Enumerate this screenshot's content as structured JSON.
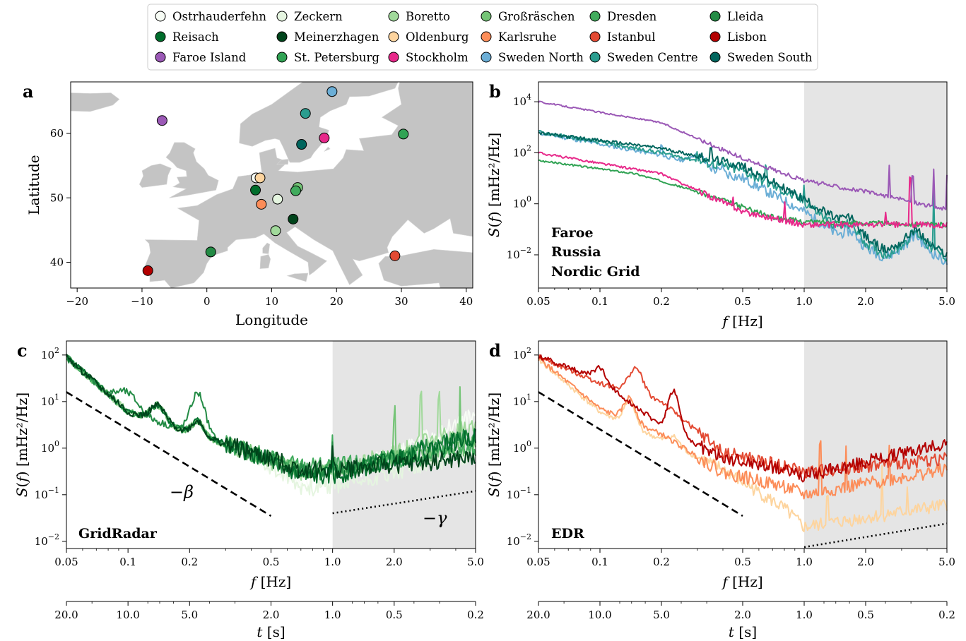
{
  "legend": [
    {
      "name": "Ostrhauderfehn",
      "color": "#f7fcf5"
    },
    {
      "name": "Zeckern",
      "color": "#e5f5e0"
    },
    {
      "name": "Boretto",
      "color": "#a1d99b"
    },
    {
      "name": "Großräschen",
      "color": "#74c476"
    },
    {
      "name": "Dresden",
      "color": "#41ab5d"
    },
    {
      "name": "Lleida",
      "color": "#238b45"
    },
    {
      "name": "Reisach",
      "color": "#006d2c"
    },
    {
      "name": "Meinerzhagen",
      "color": "#00441b"
    },
    {
      "name": "Oldenburg",
      "color": "#fdd49e"
    },
    {
      "name": "Karlsruhe",
      "color": "#fc8d59"
    },
    {
      "name": "Istanbul",
      "color": "#e34a33"
    },
    {
      "name": "Lisbon",
      "color": "#b30000"
    },
    {
      "name": "Faroe Island",
      "color": "#9b59b6"
    },
    {
      "name": "St. Petersburg",
      "color": "#31a354"
    },
    {
      "name": "Stockholm",
      "color": "#e7298a"
    },
    {
      "name": "Sweden North",
      "color": "#6baed6"
    },
    {
      "name": "Sweden Centre",
      "color": "#2a9d8f"
    },
    {
      "name": "Sweden South",
      "color": "#01665e"
    }
  ],
  "chart_data": [
    {
      "panel": "a",
      "type": "scatter",
      "xlabel": "Longitude",
      "ylabel": "Latitude",
      "xlim": [
        -21,
        41
      ],
      "ylim": [
        36,
        68
      ],
      "xticks": [
        "−20",
        "−10",
        "0",
        "10",
        "20",
        "30",
        "40"
      ],
      "yticks": [
        "40",
        "50",
        "60"
      ],
      "points": [
        {
          "name": "Ostrhauderfehn",
          "x": 7.6,
          "y": 53.1
        },
        {
          "name": "Oldenburg",
          "x": 8.2,
          "y": 53.1
        },
        {
          "name": "Reisach",
          "x": 7.5,
          "y": 51.2
        },
        {
          "name": "Karlsruhe",
          "x": 8.4,
          "y": 49.0
        },
        {
          "name": "Zeckern",
          "x": 10.9,
          "y": 49.8
        },
        {
          "name": "Großräschen",
          "x": 14.0,
          "y": 51.6
        },
        {
          "name": "Dresden",
          "x": 13.7,
          "y": 51.1
        },
        {
          "name": "Meinerzhagen",
          "x": 13.3,
          "y": 46.7
        },
        {
          "name": "Boretto",
          "x": 10.6,
          "y": 44.9
        },
        {
          "name": "Lleida",
          "x": 0.6,
          "y": 41.6
        },
        {
          "name": "Lisbon",
          "x": -9.1,
          "y": 38.7
        },
        {
          "name": "Istanbul",
          "x": 29.0,
          "y": 41.0
        },
        {
          "name": "Faroe Island",
          "x": -6.9,
          "y": 62.0
        },
        {
          "name": "St. Petersburg",
          "x": 30.3,
          "y": 59.9
        },
        {
          "name": "Stockholm",
          "x": 18.1,
          "y": 59.3
        },
        {
          "name": "Sweden North",
          "x": 19.3,
          "y": 66.5
        },
        {
          "name": "Sweden Centre",
          "x": 15.2,
          "y": 63.1
        },
        {
          "name": "Sweden South",
          "x": 14.6,
          "y": 58.3
        }
      ]
    },
    {
      "panel": "b",
      "type": "line",
      "xscale": "log",
      "yscale": "log",
      "xlabel": "f [Hz]",
      "ylabel": "S(f) [mHz²/Hz]",
      "xlim": [
        0.05,
        5.0
      ],
      "ylim": [
        0.0005,
        60000
      ],
      "xticks": [
        "0.05",
        "0.1",
        "0.2",
        "0.5",
        "1.0",
        "2.0",
        "5.0"
      ],
      "yticks": [
        "10^-2",
        "10^0",
        "10^2",
        "10^4"
      ],
      "annotations": [
        "Faroe",
        "Russia",
        "Nordic Grid"
      ],
      "shade": [
        1.0,
        5.0
      ]
    },
    {
      "panel": "c",
      "type": "line",
      "xscale": "log",
      "yscale": "log",
      "xlabel": "f [Hz]",
      "ylabel": "S(f) [mHz²/Hz]",
      "xlim": [
        0.05,
        5.0
      ],
      "ylim": [
        0.007,
        200
      ],
      "xticks": [
        "0.05",
        "0.1",
        "0.2",
        "0.5",
        "1.0",
        "2.0",
        "5.0"
      ],
      "yticks": [
        "10^-2",
        "10^-1",
        "10^0",
        "10^1",
        "10^2"
      ],
      "annotations": [
        "GridRadar",
        "−β",
        "−γ"
      ],
      "shade": [
        1.0,
        5.0
      ]
    },
    {
      "panel": "d",
      "type": "line",
      "xscale": "log",
      "yscale": "log",
      "xlabel": "f [Hz]",
      "ylabel": "S(f) [mHz²/Hz]",
      "xlim": [
        0.05,
        5.0
      ],
      "ylim": [
        0.007,
        200
      ],
      "xticks": [
        "0.05",
        "0.1",
        "0.2",
        "0.5",
        "1.0",
        "2.0",
        "5.0"
      ],
      "yticks": [
        "10^-2",
        "10^-1",
        "10^0",
        "10^1",
        "10^2"
      ],
      "annotations": [
        "EDR"
      ],
      "shade": [
        1.0,
        5.0
      ]
    }
  ],
  "time_axis": {
    "label": "t [s]",
    "ticks": [
      "20.0",
      "10.0",
      "5.0",
      "2.0",
      "1.0",
      "0.5",
      "0.2"
    ]
  },
  "panel_labels": [
    "a",
    "b",
    "c",
    "d"
  ]
}
